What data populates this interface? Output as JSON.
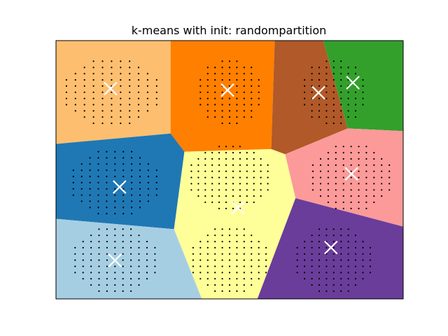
{
  "chart_data": {
    "type": "scatter",
    "title": "k-means with init: randompartition",
    "xlabel": "",
    "ylabel": "",
    "xlim": [
      0,
      100
    ],
    "ylim": [
      0,
      100
    ],
    "axes_ticks": "none",
    "grid": false,
    "regions": [
      {
        "label": "light-orange",
        "color": "#fdbf6f",
        "polygon": [
          [
            0,
            100
          ],
          [
            33,
            100
          ],
          [
            33,
            64
          ],
          [
            0,
            60
          ]
        ]
      },
      {
        "label": "orange",
        "color": "#ff7f00",
        "polygon": [
          [
            33,
            100
          ],
          [
            63,
            100
          ],
          [
            62,
            58
          ],
          [
            37,
            57
          ],
          [
            33,
            64
          ]
        ]
      },
      {
        "label": "brown",
        "color": "#b15928",
        "polygon": [
          [
            63,
            100
          ],
          [
            77,
            100
          ],
          [
            84,
            66
          ],
          [
            66,
            56
          ],
          [
            62,
            58
          ]
        ]
      },
      {
        "label": "green",
        "color": "#33a02c",
        "polygon": [
          [
            77,
            100
          ],
          [
            100,
            100
          ],
          [
            100,
            65
          ],
          [
            84,
            66
          ]
        ]
      },
      {
        "label": "blue",
        "color": "#1f78b4",
        "polygon": [
          [
            0,
            60
          ],
          [
            33,
            64
          ],
          [
            37,
            57
          ],
          [
            34,
            27
          ],
          [
            0,
            31
          ]
        ]
      },
      {
        "label": "yellow",
        "color": "#ffff99",
        "polygon": [
          [
            37,
            57
          ],
          [
            62,
            58
          ],
          [
            66,
            56
          ],
          [
            69,
            39
          ],
          [
            58,
            0
          ],
          [
            42,
            0
          ],
          [
            34,
            27
          ]
        ]
      },
      {
        "label": "pink",
        "color": "#fb9a99",
        "polygon": [
          [
            66,
            56
          ],
          [
            84,
            66
          ],
          [
            100,
            65
          ],
          [
            100,
            28
          ],
          [
            69,
            39
          ]
        ]
      },
      {
        "label": "light-blue",
        "color": "#a6cee3",
        "polygon": [
          [
            0,
            31
          ],
          [
            34,
            27
          ],
          [
            42,
            0
          ],
          [
            0,
            0
          ]
        ]
      },
      {
        "label": "purple",
        "color": "#6a3d9a",
        "polygon": [
          [
            69,
            39
          ],
          [
            100,
            28
          ],
          [
            100,
            0
          ],
          [
            58,
            0
          ]
        ]
      }
    ],
    "centroids": [
      {
        "x": 15.7,
        "y": 81.4
      },
      {
        "x": 49.4,
        "y": 80.8
      },
      {
        "x": 75.6,
        "y": 79.8
      },
      {
        "x": 85.5,
        "y": 83.7
      },
      {
        "x": 18.3,
        "y": 43.3
      },
      {
        "x": 52.4,
        "y": 35.3
      },
      {
        "x": 85.1,
        "y": 48.4
      },
      {
        "x": 17.0,
        "y": 14.9
      },
      {
        "x": 79.2,
        "y": 19.9
      }
    ],
    "clusters": [
      {
        "cx": 16,
        "cy": 80,
        "nx": 11,
        "ny": 11,
        "sx": 2.6,
        "sy": 2.4
      },
      {
        "cx": 50,
        "cy": 80,
        "nx": 9,
        "ny": 11,
        "sx": 2.1,
        "sy": 2.4
      },
      {
        "cx": 80,
        "cy": 80,
        "nx": 9,
        "ny": 11,
        "sx": 2.1,
        "sy": 2.4
      },
      {
        "cx": 17,
        "cy": 45,
        "nx": 11,
        "ny": 11,
        "sx": 2.4,
        "sy": 2.4
      },
      {
        "cx": 50,
        "cy": 47,
        "nx": 12,
        "ny": 11,
        "sx": 2.0,
        "sy": 2.4
      },
      {
        "cx": 85,
        "cy": 47,
        "nx": 11,
        "ny": 11,
        "sx": 2.2,
        "sy": 2.4
      },
      {
        "cx": 17,
        "cy": 15,
        "nx": 11,
        "ny": 11,
        "sx": 2.3,
        "sy": 2.4
      },
      {
        "cx": 50,
        "cy": 15,
        "nx": 11,
        "ny": 11,
        "sx": 2.1,
        "sy": 2.4
      },
      {
        "cx": 80,
        "cy": 15,
        "nx": 11,
        "ny": 11,
        "sx": 2.1,
        "sy": 2.4
      }
    ],
    "point_color": "#000000",
    "centroid_color": "#ffffff"
  }
}
